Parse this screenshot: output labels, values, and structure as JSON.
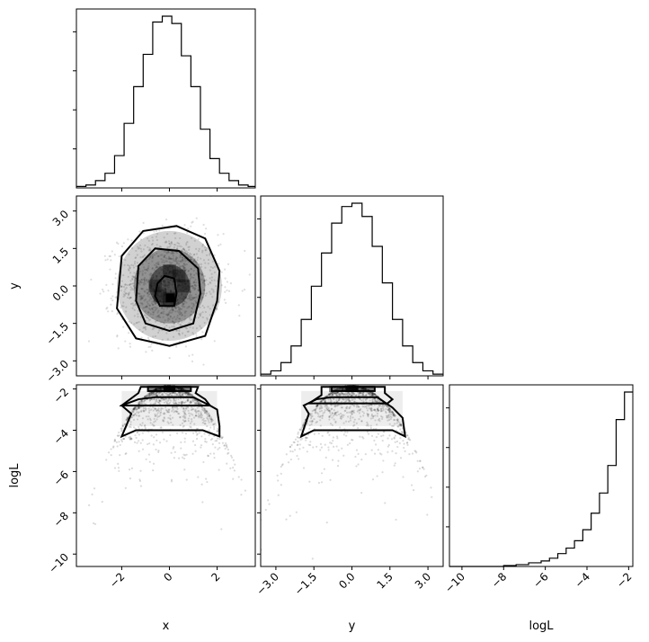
{
  "chart_data": {
    "type": "corner",
    "parameters": [
      "x",
      "y",
      "logL"
    ],
    "axis_labels": {
      "x": "x",
      "y": "y",
      "logL": "logL"
    },
    "ranges": {
      "x": [
        -3.9,
        3.6
      ],
      "y": [
        -3.6,
        3.6
      ],
      "logL": [
        -10.6,
        -1.8
      ]
    },
    "ticks": {
      "x": [
        "−2",
        "0",
        "2"
      ],
      "x_values": [
        -2,
        0,
        2
      ],
      "y": [
        "−3.0",
        "−1.5",
        "0.0",
        "1.5",
        "3.0"
      ],
      "y_values": [
        -3,
        -1.5,
        0,
        1.5,
        3
      ],
      "logL": [
        "−10",
        "−8",
        "−6",
        "−4",
        "−2"
      ],
      "logL_values": [
        -10,
        -8,
        -6,
        -4,
        -2
      ]
    },
    "histograms": {
      "x": {
        "bin_edges": [
          -3.9,
          -3.5,
          -3.1,
          -2.7,
          -2.3,
          -1.9,
          -1.5,
          -1.1,
          -0.7,
          -0.3,
          0.1,
          0.5,
          0.9,
          1.3,
          1.7,
          2.1,
          2.5,
          2.9,
          3.3,
          3.6
        ],
        "counts": [
          1,
          2,
          5,
          10,
          22,
          44,
          69,
          91,
          113,
          117,
          112,
          90,
          69,
          40,
          20,
          10,
          5,
          2,
          1
        ]
      },
      "y": {
        "bin_edges": [
          -3.6,
          -3.2,
          -2.8,
          -2.4,
          -2.0,
          -1.6,
          -1.2,
          -0.8,
          -0.4,
          0.0,
          0.4,
          0.8,
          1.2,
          1.6,
          2.0,
          2.4,
          2.8,
          3.2,
          3.6
        ],
        "counts": [
          1,
          3,
          8,
          18,
          34,
          54,
          74,
          92,
          102,
          104,
          96,
          78,
          56,
          34,
          18,
          8,
          3,
          1
        ]
      },
      "logL": {
        "bin_edges": [
          -10.6,
          -8.0,
          -7.4,
          -6.8,
          -6.2,
          -5.8,
          -5.4,
          -5.0,
          -4.6,
          -4.2,
          -3.8,
          -3.4,
          -3.0,
          -2.6,
          -2.2,
          -1.8
        ],
        "counts": [
          0,
          1,
          2,
          4,
          6,
          9,
          14,
          20,
          28,
          40,
          58,
          80,
          110,
          160,
          190
        ]
      }
    },
    "contour_levels": [
      "inner",
      "middle",
      "outer"
    ],
    "x_vs_y": {
      "contours": [
        [
          [
            -0.4,
            -0.8
          ],
          [
            0.2,
            -0.8
          ],
          [
            0.3,
            -0.3
          ],
          [
            0.2,
            0.3
          ],
          [
            -0.2,
            0.4
          ],
          [
            -0.5,
            0.1
          ],
          [
            -0.6,
            -0.4
          ]
        ],
        [
          [
            -1.4,
            -0.6
          ],
          [
            -1.0,
            -1.5
          ],
          [
            0.0,
            -1.8
          ],
          [
            1.0,
            -1.5
          ],
          [
            1.3,
            -0.3
          ],
          [
            1.2,
            0.7
          ],
          [
            0.4,
            1.4
          ],
          [
            -0.6,
            1.5
          ],
          [
            -1.3,
            0.8
          ]
        ],
        [
          [
            -2.2,
            -0.9
          ],
          [
            -1.4,
            -2.1
          ],
          [
            0.0,
            -2.4
          ],
          [
            1.5,
            -2.0
          ],
          [
            2.0,
            -0.6
          ],
          [
            2.1,
            0.6
          ],
          [
            1.5,
            1.9
          ],
          [
            0.3,
            2.4
          ],
          [
            -1.1,
            2.2
          ],
          [
            -2.0,
            1.2
          ]
        ]
      ],
      "dense_cells": [
        [
          0.0,
          -0.5
        ],
        [
          -0.6,
          0.0
        ],
        [
          0.6,
          0.0
        ],
        [
          0.0,
          0.6
        ],
        [
          -0.4,
          -0.4
        ],
        [
          0.4,
          0.4
        ]
      ]
    },
    "x_vs_logL": {
      "contours": [
        [
          [
            -2.0,
            -4.3
          ],
          [
            -1.6,
            -3.2
          ],
          [
            -2.0,
            -2.8
          ],
          [
            -1.3,
            -2.5
          ],
          [
            -0.6,
            -2.4
          ],
          [
            0.4,
            -2.4
          ],
          [
            1.0,
            -2.4
          ],
          [
            1.7,
            -2.8
          ],
          [
            2.0,
            -3.0
          ],
          [
            2.1,
            -3.8
          ],
          [
            2.1,
            -4.3
          ],
          [
            1.4,
            -4.0
          ],
          [
            0.0,
            -4.0
          ],
          [
            -1.4,
            -4.0
          ]
        ],
        [
          [
            -2.0,
            -2.8
          ],
          [
            -1.3,
            -2.2
          ],
          [
            -1.2,
            -1.9
          ],
          [
            1.2,
            -1.9
          ],
          [
            1.1,
            -2.2
          ],
          [
            1.5,
            -2.5
          ],
          [
            1.7,
            -2.8
          ]
        ],
        [
          [
            -0.9,
            -1.9
          ],
          [
            -0.9,
            -2.1
          ],
          [
            0.9,
            -2.1
          ],
          [
            0.9,
            -1.9
          ]
        ]
      ]
    },
    "y_vs_logL": {
      "contours": [
        [
          [
            -2.0,
            -4.3
          ],
          [
            -1.7,
            -3.2
          ],
          [
            -1.9,
            -2.8
          ],
          [
            -1.4,
            -2.5
          ],
          [
            -0.8,
            -2.4
          ],
          [
            0.6,
            -2.4
          ],
          [
            1.0,
            -2.4
          ],
          [
            1.6,
            -2.9
          ],
          [
            2.0,
            -3.4
          ],
          [
            2.1,
            -4.3
          ],
          [
            1.6,
            -4.0
          ],
          [
            0.0,
            -4.0
          ],
          [
            -1.5,
            -4.0
          ]
        ],
        [
          [
            -1.7,
            -2.7
          ],
          [
            -1.2,
            -2.3
          ],
          [
            -1.2,
            -1.9
          ],
          [
            1.3,
            -1.9
          ],
          [
            1.3,
            -2.2
          ],
          [
            1.6,
            -2.5
          ],
          [
            1.4,
            -2.7
          ]
        ],
        [
          [
            -0.8,
            -1.9
          ],
          [
            -0.8,
            -2.1
          ],
          [
            0.9,
            -2.1
          ],
          [
            0.9,
            -1.9
          ]
        ]
      ]
    }
  }
}
